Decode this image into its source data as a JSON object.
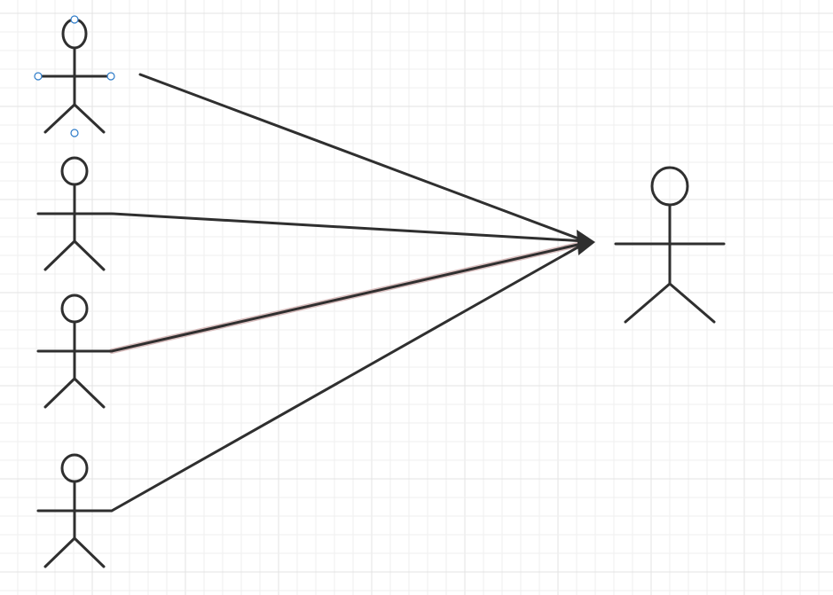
{
  "canvas": {
    "background": "#ffffff",
    "grid_minor_color": "#efefef",
    "grid_major_color": "#e3e3e3",
    "grid": true
  },
  "diagram": {
    "stroke_color": "#2f2f2f",
    "selection_handle_color": "#2e7cc9",
    "highlight_color": "#c9a3a3",
    "actors": [
      {
        "id": "actor-1",
        "selected": true
      },
      {
        "id": "actor-2",
        "selected": false
      },
      {
        "id": "actor-3",
        "selected": false
      },
      {
        "id": "actor-4",
        "selected": false
      },
      {
        "id": "actor-target",
        "selected": false
      }
    ],
    "connectors": [
      {
        "from": "actor-1",
        "to": "actor-target",
        "highlighted": false
      },
      {
        "from": "actor-2",
        "to": "actor-target",
        "highlighted": false
      },
      {
        "from": "actor-3",
        "to": "actor-target",
        "highlighted": true
      },
      {
        "from": "actor-4",
        "to": "actor-target",
        "highlighted": false
      }
    ]
  }
}
